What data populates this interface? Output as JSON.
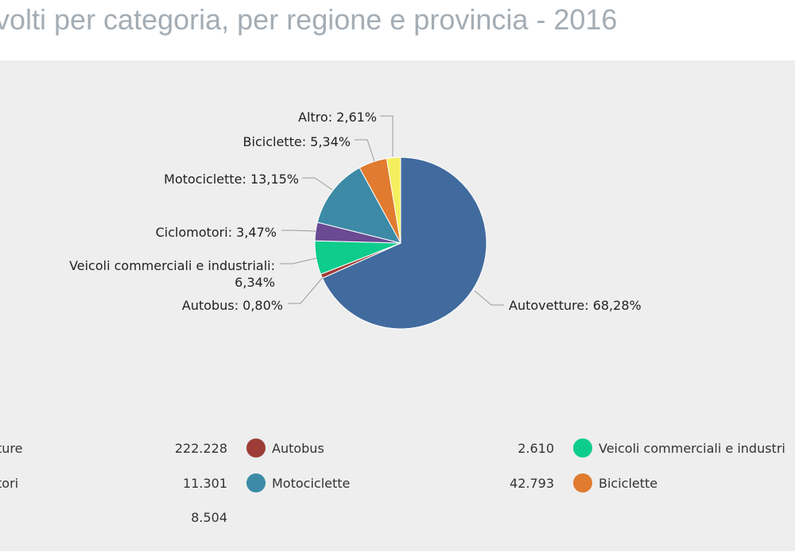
{
  "page": {
    "title": "volti per categoria, per regione e provincia - 2016"
  },
  "chart_data": {
    "type": "pie",
    "title": "",
    "slices": [
      {
        "name": "Autovetture",
        "percent": 68.28,
        "label": "Autovetture: 68,28%",
        "color": "#416b9e"
      },
      {
        "name": "Autobus",
        "percent": 0.8,
        "label": "Autobus: 0,80%",
        "color": "#9e3d37"
      },
      {
        "name": "Veicoli commerciali e industriali",
        "percent": 6.34,
        "label_line1": "Veicoli commerciali e industriali:",
        "label_line2": "6,34%",
        "color": "#0ecc8c"
      },
      {
        "name": "Ciclomotori",
        "percent": 3.47,
        "label": "Ciclomotori: 3,47%",
        "color": "#6a4a92"
      },
      {
        "name": "Motociclette",
        "percent": 13.15,
        "label": "Motociclette: 13,15%",
        "color": "#3d8aa6"
      },
      {
        "name": "Biciclette",
        "percent": 5.34,
        "label": "Biciclette: 5,34%",
        "color": "#e07b30"
      },
      {
        "name": "Altro",
        "percent": 2.61,
        "label": "Altro: 2,61%",
        "color": "#f4ef5e"
      }
    ],
    "legend_rows": [
      [
        {
          "value": "",
          "name": "ture",
          "color": null
        },
        {
          "value": "222.228",
          "name": "Autobus",
          "color": "#9e3d37"
        },
        {
          "value": "2.610",
          "name": "Veicoli commerciali e industri",
          "color": "#0ecc8c"
        }
      ],
      [
        {
          "value": "",
          "name": "tori",
          "color": null
        },
        {
          "value": "11.301",
          "name": "Motociclette",
          "color": "#3d8aa6"
        },
        {
          "value": "42.793",
          "name": "Biciclette",
          "color": "#e07b30"
        }
      ],
      [
        {
          "value": "",
          "name": "",
          "color": null
        },
        {
          "value": "8.504",
          "name": "",
          "color": null
        },
        {
          "value": "",
          "name": "",
          "color": null
        }
      ]
    ]
  }
}
